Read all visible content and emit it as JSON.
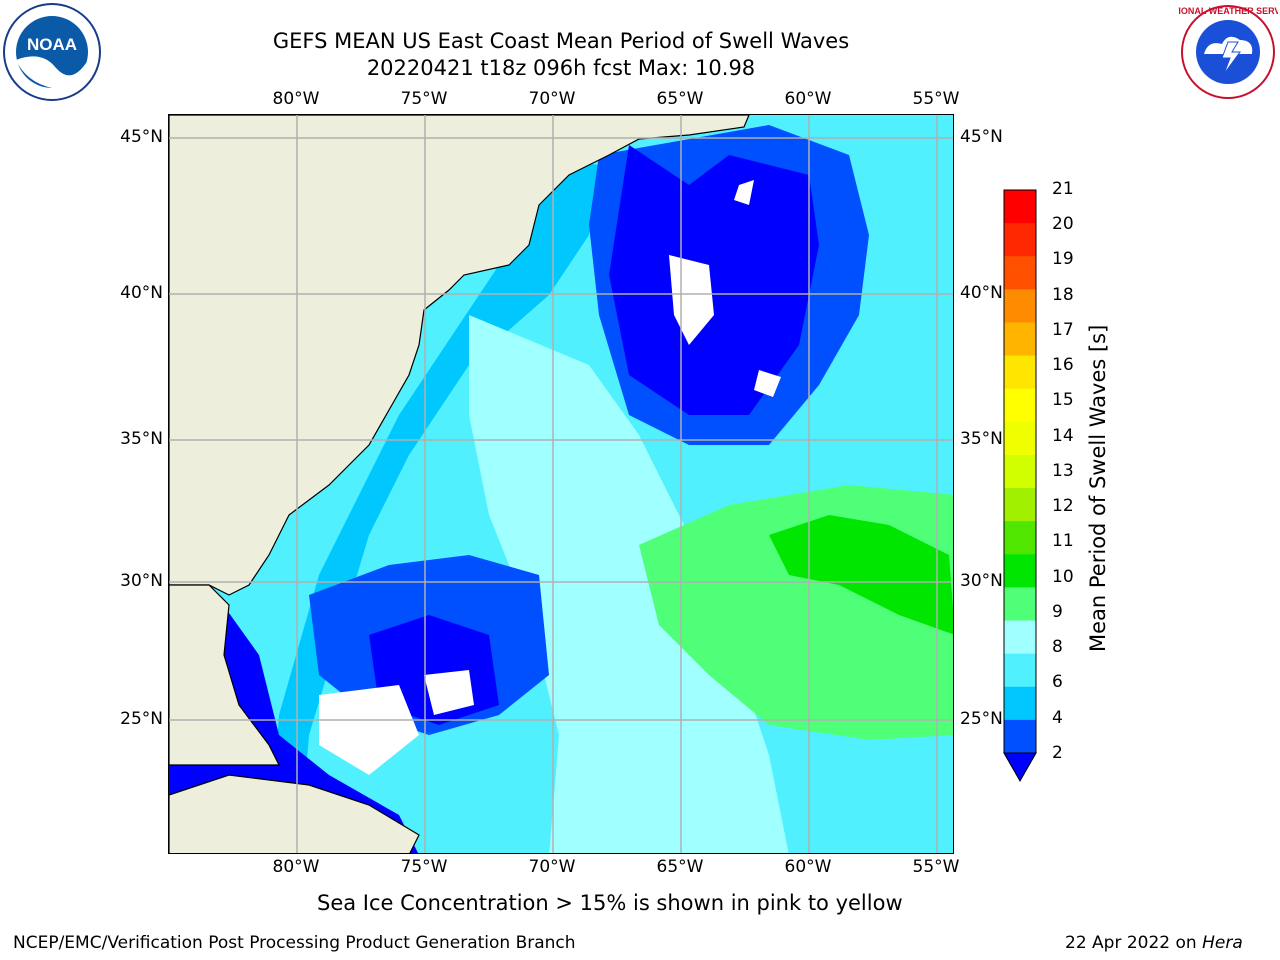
{
  "title": {
    "line1": "GEFS MEAN US East Coast Mean Period of Swell Waves",
    "line2": "20220421 t18z 096h fcst   Max: 10.98"
  },
  "logos": {
    "left": {
      "name": "noaa-logo",
      "text": "NOAA"
    },
    "right": {
      "name": "national-weather-service-logo",
      "text": "NATIONAL WEATHER SERVICE"
    }
  },
  "map": {
    "lon_labels": [
      "80°W",
      "75°W",
      "70°W",
      "65°W",
      "60°W",
      "55°W"
    ],
    "lat_labels": [
      "45°N",
      "40°N",
      "35°N",
      "30°N",
      "25°N"
    ],
    "lon_range": [
      -85,
      -54
    ],
    "lat_range": [
      20.5,
      46
    ]
  },
  "colorbar": {
    "label": "Mean Period of Swell Waves [s]",
    "ticks": [
      "2",
      "4",
      "6",
      "8",
      "9",
      "10",
      "11",
      "12",
      "13",
      "14",
      "15",
      "16",
      "17",
      "18",
      "19",
      "20",
      "21"
    ],
    "colors": [
      "#0050ff",
      "#00c8ff",
      "#50f0ff",
      "#a0ffff",
      "#50ff78",
      "#00e600",
      "#50e600",
      "#a0f000",
      "#d2ff00",
      "#f0ff00",
      "#ffff00",
      "#ffe600",
      "#ffb400",
      "#ff8c00",
      "#ff5000",
      "#ff2800",
      "#ff0000"
    ],
    "under_color": "#0000ff"
  },
  "footer": {
    "note": "Sea Ice Concentration > 15% is shown in pink to yellow",
    "left": "NCEP/EMC/Verification Post Processing Product Generation Branch",
    "date": "22 Apr 2022 on ",
    "host": "Hera"
  }
}
